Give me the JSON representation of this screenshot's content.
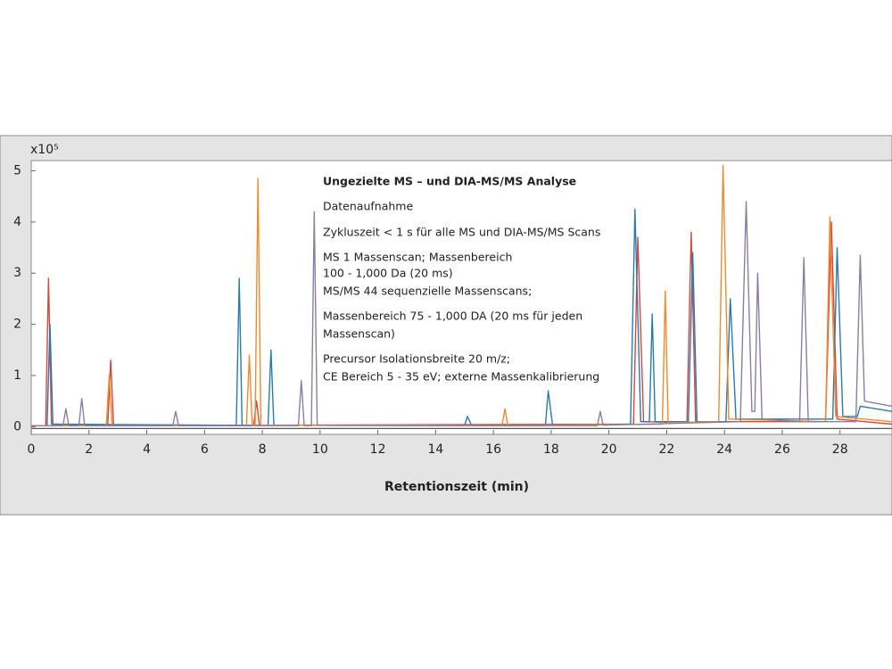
{
  "chart_data": {
    "type": "line",
    "x_axis_label": "Retentionszeit (min)",
    "y_axis_label": "x10⁵",
    "annotation": {
      "title": "Ungezielte MS – und DIA-MS/MS Analyse",
      "lines": [
        "Datenaufnahme",
        "Zykluszeit < 1 s für alle MS und DIA-MS/MS Scans",
        "MS 1 Massenscan; Massenbereich",
        "100 - 1,000 Da (20 ms)",
        "MS/MS 44 sequenzielle Massenscans;",
        "Massenbereich 75 - 1,000 DA (20 ms für jeden",
        "Massenscan)",
        "Precursor Isolationsbreite 20 m/z;",
        "CE Bereich 5 - 35 eV; externe Massenkalibrierung"
      ]
    },
    "xlim": [
      0,
      29.8
    ],
    "ylim": [
      -0.15,
      5.2
    ],
    "xticks": [
      0,
      2,
      4,
      6,
      8,
      10,
      12,
      14,
      16,
      18,
      20,
      22,
      24,
      26,
      28
    ],
    "yticks": [
      0,
      1,
      2,
      3,
      4,
      5
    ],
    "series": [
      {
        "color": "#d9463b",
        "x": [
          0,
          0.5,
          0.6,
          0.7,
          2.65,
          2.75,
          2.85,
          7.7,
          7.8,
          7.9,
          20.85,
          21.0,
          21.2,
          22.7,
          22.85,
          23.0,
          27.5,
          27.7,
          27.9,
          29.8
        ],
        "values": [
          0.02,
          0.02,
          2.9,
          0.05,
          0.03,
          1.3,
          0.03,
          0.03,
          0.5,
          0.03,
          0.05,
          3.7,
          0.1,
          0.08,
          3.8,
          0.1,
          0.1,
          4.0,
          0.15,
          0.05
        ]
      },
      {
        "color": "#2a7ab0",
        "x": [
          0,
          0.55,
          0.65,
          0.75,
          7.1,
          7.2,
          7.3,
          8.2,
          8.3,
          8.4,
          15.0,
          15.1,
          15.25,
          17.8,
          17.9,
          18.05,
          20.75,
          20.9,
          21.1,
          21.4,
          21.5,
          21.6,
          22.75,
          22.9,
          23.05,
          24.05,
          24.2,
          24.4,
          27.75,
          27.9,
          28.1,
          28.6,
          28.7,
          29.8
        ],
        "values": [
          0.02,
          0.02,
          2.0,
          0.05,
          0.03,
          2.9,
          0.03,
          0.03,
          1.5,
          0.03,
          0.02,
          0.2,
          0.02,
          0.02,
          0.7,
          0.03,
          0.05,
          4.25,
          0.1,
          0.1,
          2.2,
          0.1,
          0.1,
          3.4,
          0.1,
          0.1,
          2.5,
          0.15,
          0.15,
          3.5,
          0.2,
          0.2,
          0.4,
          0.3
        ]
      },
      {
        "color": "#f08a2c",
        "x": [
          0,
          2.6,
          2.7,
          2.8,
          7.45,
          7.55,
          7.65,
          7.75,
          7.85,
          7.95,
          16.3,
          16.4,
          16.5,
          21.85,
          21.95,
          22.05,
          23.8,
          23.95,
          24.15,
          27.5,
          27.65,
          27.85,
          29.8
        ],
        "values": [
          0.02,
          0.02,
          1.0,
          0.02,
          0.02,
          1.4,
          0.03,
          0.03,
          4.85,
          0.03,
          0.02,
          0.35,
          0.02,
          0.05,
          2.65,
          0.08,
          0.1,
          5.1,
          0.15,
          0.1,
          4.1,
          0.2,
          0.1
        ]
      },
      {
        "color": "#8a7fa0",
        "x": [
          0,
          1.1,
          1.2,
          1.3,
          1.65,
          1.75,
          1.85,
          4.9,
          5.0,
          5.1,
          9.25,
          9.35,
          9.45,
          9.7,
          9.8,
          9.9,
          19.6,
          19.7,
          19.8,
          24.55,
          24.75,
          24.95,
          25.05,
          25.15,
          25.3,
          26.6,
          26.75,
          26.9,
          28.55,
          28.7,
          28.85,
          29.8
        ],
        "values": [
          0.02,
          0.02,
          0.35,
          0.02,
          0.02,
          0.55,
          0.02,
          0.02,
          0.3,
          0.02,
          0.02,
          0.9,
          0.02,
          0.02,
          4.2,
          0.03,
          0.02,
          0.3,
          0.03,
          0.1,
          4.4,
          0.3,
          0.3,
          3.0,
          0.15,
          0.1,
          3.3,
          0.1,
          0.1,
          3.35,
          0.5,
          0.4
        ]
      }
    ]
  }
}
